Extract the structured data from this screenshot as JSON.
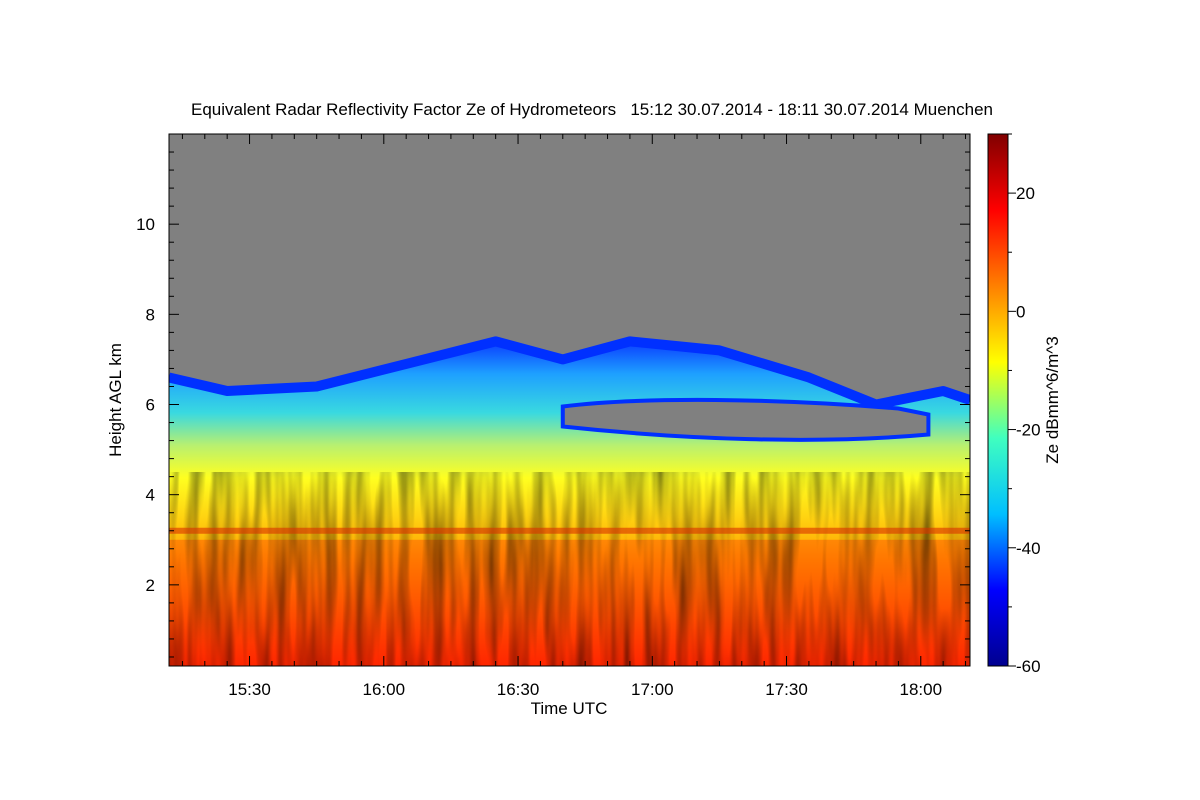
{
  "chart_data": {
    "type": "heatmap",
    "title": "Equivalent Radar Reflectivity Factor Ze of Hydrometeors   15:12 30.07.2014 - 18:11 30.07.2014 Muenchen",
    "xlabel": "Time UTC",
    "ylabel": "Height AGL km",
    "colorbar_label": "Ze dBmm^6/m^3",
    "x_range": [
      "15:12",
      "18:11"
    ],
    "y_range_km": [
      0.2,
      12
    ],
    "x_ticks": [
      "15:30",
      "16:00",
      "16:30",
      "17:00",
      "17:30",
      "18:00"
    ],
    "y_ticks": [
      2,
      4,
      6,
      8,
      10
    ],
    "colorbar_range": [
      -60,
      30
    ],
    "colorbar_ticks": [
      -60,
      -40,
      -20,
      0,
      20
    ],
    "no_signal_color": "#808080",
    "colormap": [
      "#00008f",
      "#0000ff",
      "#00bfff",
      "#40ffbf",
      "#ffff00",
      "#ff8000",
      "#ff0000",
      "#800000"
    ],
    "regions": [
      {
        "name": "cloud-top",
        "top_km": [
          6.6,
          6.3,
          6.4,
          6.9,
          7.4,
          7.0,
          7.4,
          7.2,
          6.6,
          6.0,
          6.3,
          6.1
        ],
        "times": [
          "15:12",
          "15:25",
          "15:45",
          "16:05",
          "16:25",
          "16:40",
          "16:55",
          "17:15",
          "17:35",
          "17:50",
          "18:05",
          "18:11"
        ]
      },
      {
        "name": "gap-top",
        "top_km": 6.0,
        "start": "16:40",
        "end": "17:55"
      },
      {
        "name": "melting-layer",
        "height_km": 3.2
      }
    ]
  }
}
